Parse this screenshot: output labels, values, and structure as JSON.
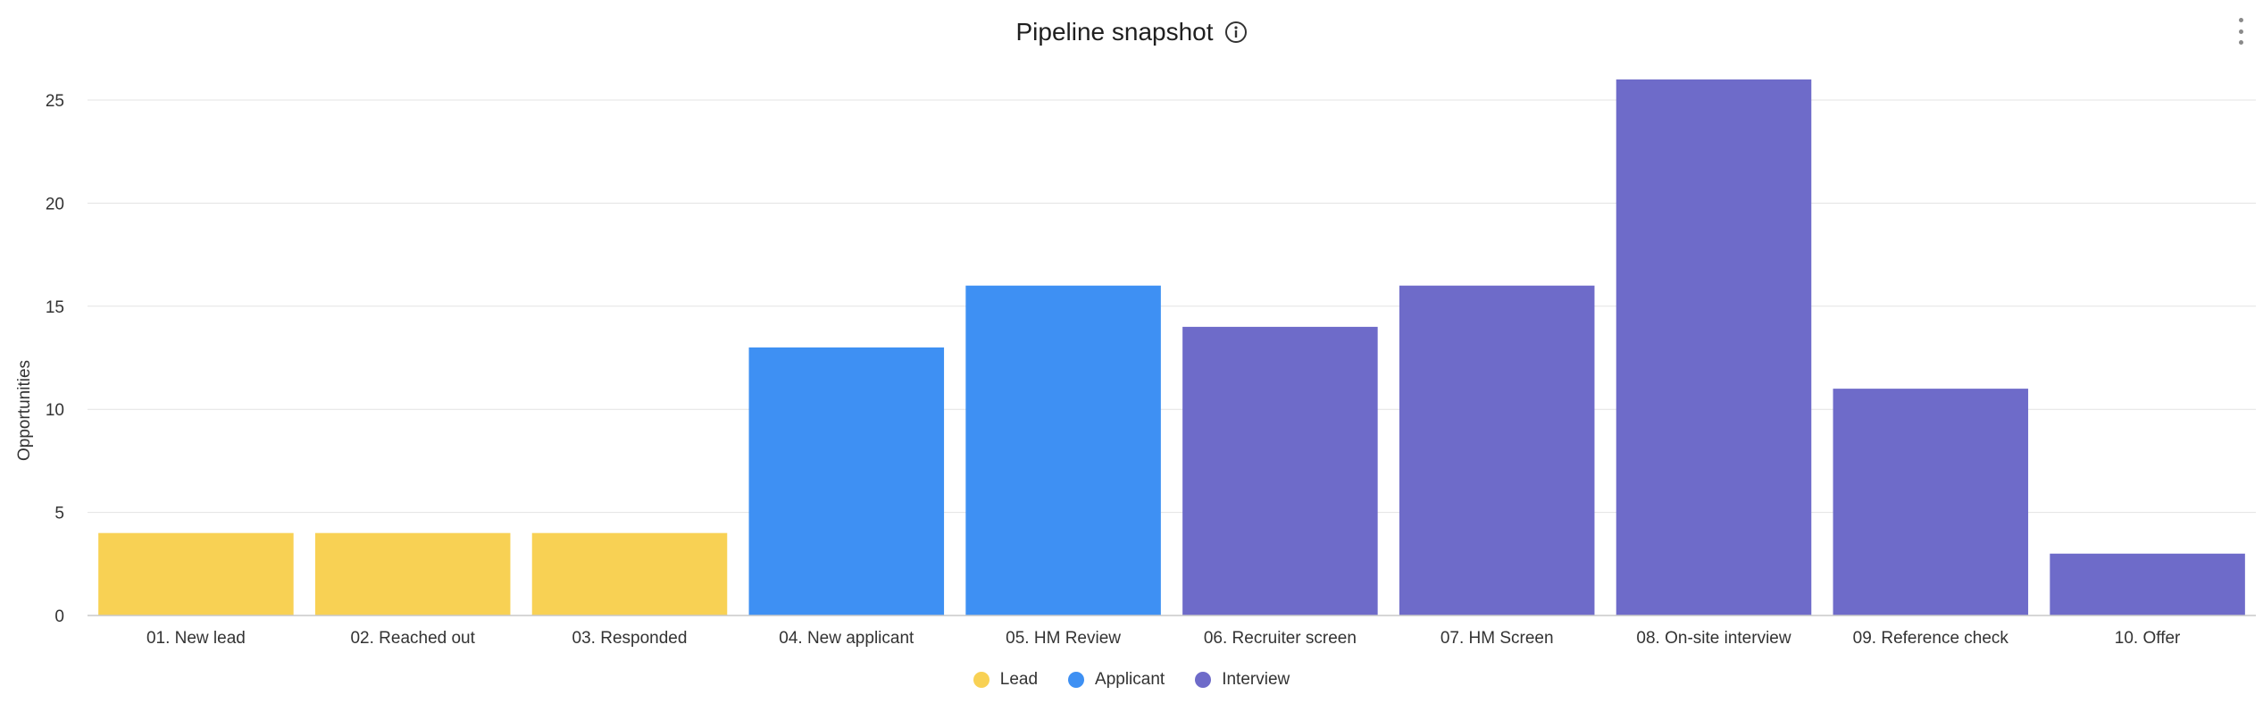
{
  "header": {
    "title": "Pipeline snapshot"
  },
  "icons": {
    "info": "info-circle-icon",
    "more": "more-vertical-icon"
  },
  "chart_data": {
    "type": "bar",
    "title": "Pipeline snapshot",
    "xlabel": "",
    "ylabel": "Opportunities",
    "ylim": [
      0,
      27
    ],
    "yticks": [
      0,
      5,
      10,
      15,
      20,
      25
    ],
    "grid": true,
    "legend_position": "bottom",
    "categories": [
      "01. New lead",
      "02. Reached out",
      "03. Responded",
      "04. New applicant",
      "05. HM Review",
      "06. Recruiter screen",
      "07. HM Screen",
      "08. On-site interview",
      "09. Reference check",
      "10. Offer"
    ],
    "values": [
      4,
      4,
      4,
      13,
      16,
      14,
      16,
      26,
      11,
      3
    ],
    "bar_groups": [
      "Lead",
      "Lead",
      "Lead",
      "Applicant",
      "Applicant",
      "Interview",
      "Interview",
      "Interview",
      "Interview",
      "Interview"
    ],
    "legend": [
      {
        "name": "Lead",
        "color": "#f8d154"
      },
      {
        "name": "Applicant",
        "color": "#3e90f3"
      },
      {
        "name": "Interview",
        "color": "#6e6bc9"
      }
    ]
  }
}
